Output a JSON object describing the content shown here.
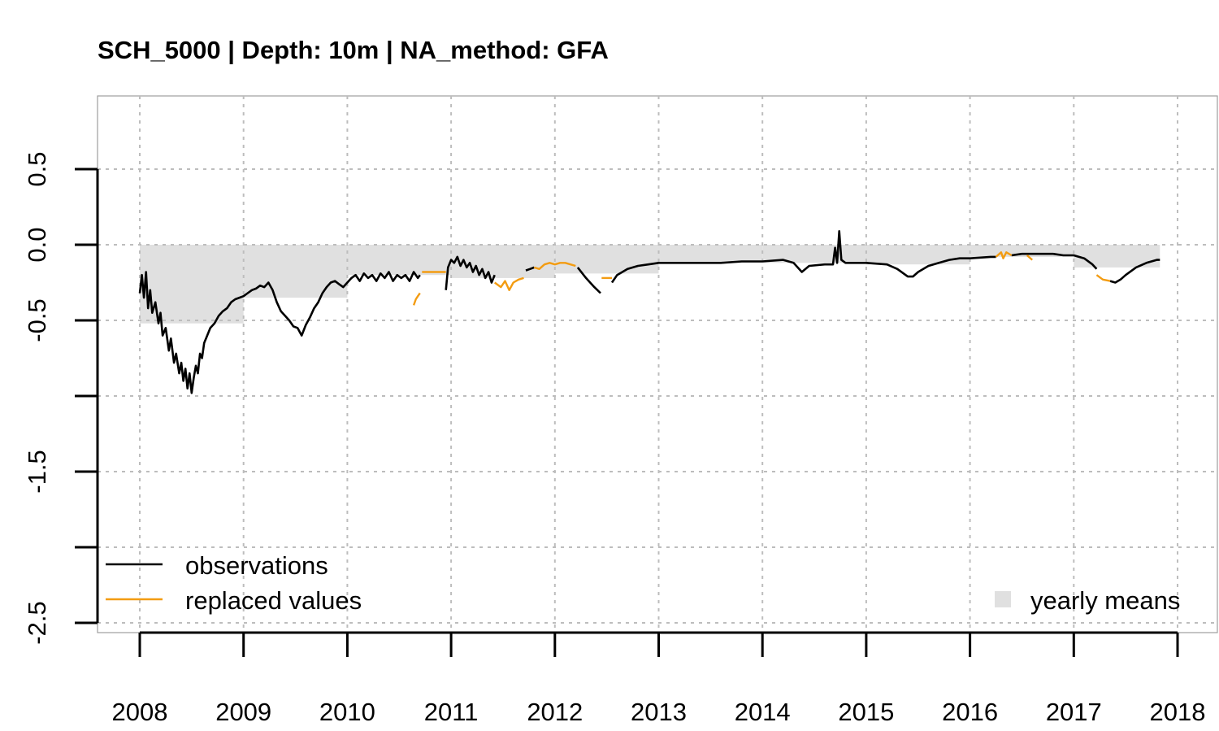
{
  "chart_data": {
    "type": "line",
    "title": "SCH_5000 | Depth: 10m | NA_method: GFA",
    "xlabel": "",
    "ylabel": "",
    "xlim": [
      2007.6,
      2018.4
    ],
    "ylim": [
      -2.85,
      1.0
    ],
    "x_ticks": [
      2008,
      2009,
      2010,
      2011,
      2012,
      2013,
      2014,
      2015,
      2016,
      2017,
      2018
    ],
    "x_tick_labels": [
      "2008",
      "2009",
      "2010",
      "2011",
      "2012",
      "2013",
      "2014",
      "2015",
      "2016",
      "2017",
      "2018"
    ],
    "y_ticks": [
      0.5,
      0.0,
      -0.5,
      -1.0,
      -1.5,
      -2.0,
      -2.5
    ],
    "y_tick_labels": [
      "0.5",
      "0.0",
      "-0.5",
      "",
      "-1.5",
      "",
      "-2.5"
    ],
    "grid": true,
    "colors": {
      "observations": "#000000",
      "replaced": "#F39C12",
      "yearly_means": "#E0E0E0",
      "grid": "#BDBDBD"
    },
    "legend": {
      "left_placement": "bottom-left",
      "right_placement": "bottom-right",
      "entries": [
        {
          "label": "observations",
          "kind": "line",
          "color": "#000000"
        },
        {
          "label": "replaced values",
          "kind": "line",
          "color": "#F39C12"
        },
        {
          "label": "yearly means",
          "kind": "square",
          "color": "#E0E0E0"
        }
      ]
    },
    "yearly_means": [
      {
        "start": 2008.0,
        "end": 2009.0,
        "value": -0.52
      },
      {
        "start": 2009.0,
        "end": 2010.0,
        "value": -0.35
      },
      {
        "start": 2010.0,
        "end": 2011.0,
        "value": -0.2
      },
      {
        "start": 2011.0,
        "end": 2012.0,
        "value": -0.22
      },
      {
        "start": 2012.0,
        "end": 2013.0,
        "value": -0.19
      },
      {
        "start": 2013.0,
        "end": 2014.0,
        "value": -0.12
      },
      {
        "start": 2014.0,
        "end": 2015.0,
        "value": -0.12
      },
      {
        "start": 2015.0,
        "end": 2016.0,
        "value": -0.13
      },
      {
        "start": 2016.0,
        "end": 2017.0,
        "value": -0.08
      },
      {
        "start": 2017.0,
        "end": 2017.83,
        "value": -0.15
      }
    ],
    "series": [
      {
        "name": "observations",
        "segments": [
          [
            [
              2008.0,
              -0.32
            ],
            [
              2008.02,
              -0.2
            ],
            [
              2008.04,
              -0.35
            ],
            [
              2008.06,
              -0.18
            ],
            [
              2008.08,
              -0.42
            ],
            [
              2008.1,
              -0.3
            ],
            [
              2008.12,
              -0.45
            ],
            [
              2008.15,
              -0.38
            ],
            [
              2008.18,
              -0.52
            ],
            [
              2008.2,
              -0.45
            ],
            [
              2008.22,
              -0.6
            ],
            [
              2008.25,
              -0.55
            ],
            [
              2008.28,
              -0.7
            ],
            [
              2008.3,
              -0.62
            ],
            [
              2008.33,
              -0.78
            ],
            [
              2008.35,
              -0.72
            ],
            [
              2008.38,
              -0.85
            ],
            [
              2008.4,
              -0.78
            ],
            [
              2008.42,
              -0.9
            ],
            [
              2008.44,
              -0.82
            ],
            [
              2008.46,
              -0.95
            ],
            [
              2008.48,
              -0.85
            ],
            [
              2008.5,
              -0.98
            ],
            [
              2008.52,
              -0.88
            ],
            [
              2008.54,
              -0.8
            ],
            [
              2008.56,
              -0.85
            ],
            [
              2008.58,
              -0.72
            ],
            [
              2008.6,
              -0.75
            ],
            [
              2008.62,
              -0.65
            ],
            [
              2008.65,
              -0.6
            ],
            [
              2008.68,
              -0.55
            ],
            [
              2008.72,
              -0.52
            ],
            [
              2008.76,
              -0.47
            ],
            [
              2008.8,
              -0.44
            ],
            [
              2008.84,
              -0.42
            ],
            [
              2008.88,
              -0.38
            ],
            [
              2008.92,
              -0.36
            ],
            [
              2008.96,
              -0.35
            ],
            [
              2009.0,
              -0.34
            ],
            [
              2009.04,
              -0.32
            ],
            [
              2009.08,
              -0.3
            ],
            [
              2009.12,
              -0.29
            ],
            [
              2009.16,
              -0.27
            ],
            [
              2009.2,
              -0.28
            ],
            [
              2009.24,
              -0.25
            ],
            [
              2009.28,
              -0.3
            ],
            [
              2009.32,
              -0.38
            ],
            [
              2009.36,
              -0.44
            ],
            [
              2009.4,
              -0.47
            ],
            [
              2009.44,
              -0.5
            ],
            [
              2009.48,
              -0.54
            ],
            [
              2009.52,
              -0.55
            ],
            [
              2009.56,
              -0.6
            ],
            [
              2009.6,
              -0.53
            ],
            [
              2009.64,
              -0.48
            ],
            [
              2009.68,
              -0.42
            ],
            [
              2009.72,
              -0.38
            ],
            [
              2009.76,
              -0.32
            ],
            [
              2009.8,
              -0.28
            ],
            [
              2009.84,
              -0.25
            ],
            [
              2009.88,
              -0.24
            ],
            [
              2009.92,
              -0.26
            ],
            [
              2009.96,
              -0.28
            ],
            [
              2010.0,
              -0.25
            ],
            [
              2010.04,
              -0.22
            ],
            [
              2010.08,
              -0.2
            ],
            [
              2010.12,
              -0.24
            ],
            [
              2010.16,
              -0.19
            ],
            [
              2010.2,
              -0.22
            ],
            [
              2010.24,
              -0.2
            ],
            [
              2010.28,
              -0.24
            ],
            [
              2010.32,
              -0.19
            ],
            [
              2010.36,
              -0.22
            ],
            [
              2010.4,
              -0.18
            ],
            [
              2010.44,
              -0.24
            ],
            [
              2010.48,
              -0.2
            ],
            [
              2010.52,
              -0.22
            ],
            [
              2010.56,
              -0.2
            ],
            [
              2010.6,
              -0.24
            ],
            [
              2010.64,
              -0.18
            ],
            [
              2010.68,
              -0.22
            ],
            [
              2010.7,
              -0.2
            ]
          ],
          [
            [
              2010.95,
              -0.3
            ],
            [
              2010.97,
              -0.15
            ],
            [
              2011.0,
              -0.1
            ],
            [
              2011.03,
              -0.12
            ],
            [
              2011.06,
              -0.08
            ],
            [
              2011.09,
              -0.14
            ],
            [
              2011.12,
              -0.1
            ],
            [
              2011.15,
              -0.15
            ],
            [
              2011.18,
              -0.12
            ],
            [
              2011.21,
              -0.18
            ],
            [
              2011.24,
              -0.14
            ],
            [
              2011.27,
              -0.2
            ],
            [
              2011.3,
              -0.16
            ],
            [
              2011.33,
              -0.22
            ],
            [
              2011.36,
              -0.18
            ],
            [
              2011.39,
              -0.25
            ],
            [
              2011.42,
              -0.2
            ]
          ],
          [
            [
              2011.72,
              -0.17
            ],
            [
              2011.76,
              -0.16
            ],
            [
              2011.8,
              -0.15
            ]
          ],
          [
            [
              2012.22,
              -0.15
            ],
            [
              2012.3,
              -0.22
            ],
            [
              2012.38,
              -0.28
            ],
            [
              2012.44,
              -0.32
            ]
          ],
          [
            [
              2012.55,
              -0.25
            ],
            [
              2012.6,
              -0.2
            ],
            [
              2012.7,
              -0.16
            ],
            [
              2012.8,
              -0.14
            ],
            [
              2012.9,
              -0.13
            ],
            [
              2013.0,
              -0.12
            ],
            [
              2013.2,
              -0.12
            ],
            [
              2013.4,
              -0.12
            ],
            [
              2013.6,
              -0.12
            ],
            [
              2013.8,
              -0.11
            ],
            [
              2014.0,
              -0.11
            ],
            [
              2014.2,
              -0.1
            ],
            [
              2014.3,
              -0.12
            ],
            [
              2014.38,
              -0.18
            ],
            [
              2014.45,
              -0.14
            ],
            [
              2014.6,
              -0.13
            ],
            [
              2014.68,
              -0.13
            ],
            [
              2014.7,
              -0.02
            ],
            [
              2014.72,
              -0.12
            ],
            [
              2014.74,
              0.09
            ],
            [
              2014.76,
              -0.1
            ],
            [
              2014.8,
              -0.12
            ],
            [
              2015.0,
              -0.12
            ],
            [
              2015.2,
              -0.13
            ],
            [
              2015.3,
              -0.16
            ],
            [
              2015.4,
              -0.21
            ],
            [
              2015.45,
              -0.21
            ],
            [
              2015.5,
              -0.18
            ],
            [
              2015.6,
              -0.14
            ],
            [
              2015.7,
              -0.12
            ],
            [
              2015.8,
              -0.1
            ],
            [
              2015.9,
              -0.09
            ],
            [
              2016.0,
              -0.09
            ],
            [
              2016.2,
              -0.08
            ],
            [
              2016.25,
              -0.08
            ]
          ],
          [
            [
              2016.4,
              -0.07
            ],
            [
              2016.5,
              -0.06
            ],
            [
              2016.6,
              -0.06
            ],
            [
              2016.7,
              -0.06
            ],
            [
              2016.8,
              -0.06
            ],
            [
              2016.9,
              -0.07
            ],
            [
              2017.0,
              -0.07
            ],
            [
              2017.1,
              -0.09
            ],
            [
              2017.18,
              -0.13
            ],
            [
              2017.22,
              -0.16
            ]
          ],
          [
            [
              2017.35,
              -0.24
            ],
            [
              2017.4,
              -0.25
            ],
            [
              2017.45,
              -0.23
            ],
            [
              2017.5,
              -0.2
            ],
            [
              2017.6,
              -0.15
            ],
            [
              2017.7,
              -0.12
            ],
            [
              2017.8,
              -0.1
            ],
            [
              2017.83,
              -0.1
            ]
          ]
        ]
      },
      {
        "name": "replaced values",
        "segments": [
          [
            [
              2010.64,
              -0.4
            ],
            [
              2010.66,
              -0.36
            ],
            [
              2010.68,
              -0.34
            ],
            [
              2010.7,
              -0.32
            ]
          ],
          [
            [
              2010.72,
              -0.18
            ],
            [
              2010.95,
              -0.18
            ]
          ],
          [
            [
              2011.42,
              -0.25
            ],
            [
              2011.48,
              -0.28
            ],
            [
              2011.52,
              -0.24
            ],
            [
              2011.56,
              -0.3
            ],
            [
              2011.6,
              -0.25
            ],
            [
              2011.65,
              -0.23
            ],
            [
              2011.7,
              -0.22
            ]
          ],
          [
            [
              2011.8,
              -0.15
            ],
            [
              2011.85,
              -0.16
            ],
            [
              2011.9,
              -0.13
            ],
            [
              2011.95,
              -0.12
            ],
            [
              2012.0,
              -0.13
            ],
            [
              2012.05,
              -0.12
            ],
            [
              2012.1,
              -0.12
            ],
            [
              2012.15,
              -0.13
            ],
            [
              2012.2,
              -0.14
            ]
          ],
          [
            [
              2012.45,
              -0.22
            ],
            [
              2012.55,
              -0.22
            ]
          ],
          [
            [
              2016.25,
              -0.08
            ],
            [
              2016.3,
              -0.05
            ],
            [
              2016.32,
              -0.09
            ],
            [
              2016.35,
              -0.05
            ],
            [
              2016.4,
              -0.07
            ]
          ],
          [
            [
              2016.55,
              -0.07
            ],
            [
              2016.6,
              -0.1
            ]
          ],
          [
            [
              2017.22,
              -0.2
            ],
            [
              2017.28,
              -0.23
            ],
            [
              2017.35,
              -0.24
            ]
          ]
        ]
      }
    ]
  }
}
